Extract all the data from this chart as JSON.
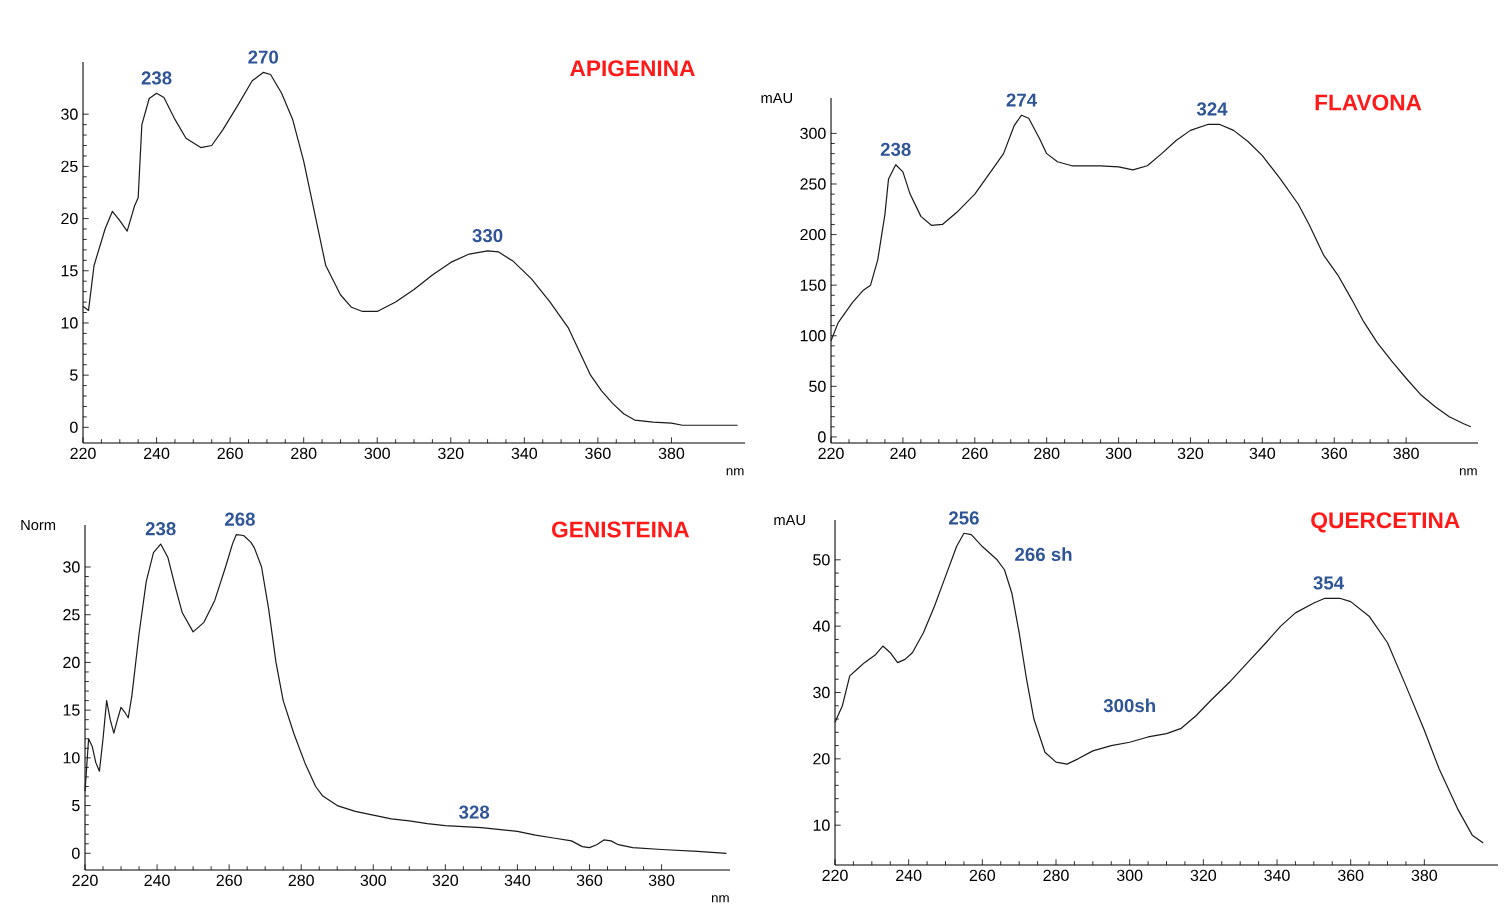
{
  "chart_data": [
    {
      "type": "line",
      "title": "APIGENINA",
      "xlabel": "nm",
      "x": [
        220,
        221.5,
        223,
        226,
        228,
        230,
        232,
        234,
        235,
        236,
        238,
        240,
        242,
        245,
        248,
        252,
        255,
        258,
        262,
        266,
        269,
        271,
        274,
        277,
        280,
        283,
        286,
        290,
        293,
        296,
        300,
        305,
        310,
        315,
        320,
        325,
        330,
        333,
        337,
        342,
        347,
        352,
        356,
        358,
        361,
        364,
        367,
        370,
        375,
        380,
        383,
        390,
        398
      ],
      "series": [
        {
          "color": "#1a1a1a",
          "values": [
            11.6,
            11.2,
            15.5,
            19,
            20.7,
            19.8,
            18.8,
            21.2,
            22,
            29,
            31.5,
            32,
            31.6,
            29.5,
            27.7,
            26.8,
            27,
            28.5,
            30.8,
            33.2,
            34,
            33.8,
            32,
            29.5,
            25.5,
            20.5,
            15.5,
            12.7,
            11.5,
            11.1,
            11.1,
            12,
            13.2,
            14.6,
            15.8,
            16.6,
            16.9,
            16.8,
            15.9,
            14.2,
            12,
            9.5,
            6.5,
            5,
            3.5,
            2.3,
            1.3,
            0.7,
            0.5,
            0.4,
            0.2,
            0.2,
            0.2
          ]
        }
      ],
      "xlim": [
        220,
        400
      ],
      "ylim": [
        -1.5,
        35
      ],
      "xticks": [
        220,
        240,
        260,
        280,
        300,
        320,
        340,
        360,
        380
      ],
      "yticks": [
        0,
        5,
        10,
        15,
        20,
        25,
        30
      ],
      "annotations": [
        {
          "text": "238",
          "x": 240,
          "y": 32
        },
        {
          "text": "270",
          "x": 269,
          "y": 34
        },
        {
          "text": "330",
          "x": 330,
          "y": 16.9
        }
      ]
    },
    {
      "type": "line",
      "title": "FLAVONA",
      "ylabel": "mAU",
      "xlabel": "nm",
      "x": [
        220,
        222,
        226,
        229,
        231,
        233,
        235,
        236,
        238,
        240,
        242,
        245,
        248,
        251,
        255,
        260,
        265,
        268,
        271,
        273,
        275,
        278,
        280,
        283,
        287,
        295,
        300,
        304,
        308,
        312,
        316,
        320,
        325,
        328,
        332,
        336,
        340,
        345,
        350,
        353,
        357,
        361,
        365,
        368,
        372,
        376,
        380,
        384,
        388,
        392,
        396,
        398
      ],
      "series": [
        {
          "color": "#1a1a1a",
          "values": [
            95,
            113,
            133,
            145,
            150,
            175,
            220,
            255,
            269,
            262,
            240,
            218,
            209,
            210,
            222,
            240,
            265,
            280,
            308,
            318,
            315,
            295,
            280,
            272,
            268,
            268,
            267,
            264,
            268,
            280,
            293,
            303,
            309,
            309,
            303,
            292,
            278,
            255,
            230,
            210,
            180,
            160,
            135,
            115,
            93,
            75,
            58,
            42,
            30,
            20,
            13,
            10
          ]
        }
      ],
      "xlim": [
        220,
        400
      ],
      "ylim": [
        -6,
        335
      ],
      "xticks": [
        220,
        240,
        260,
        280,
        300,
        320,
        340,
        360,
        380
      ],
      "yticks": [
        0,
        50,
        100,
        150,
        200,
        250,
        300
      ],
      "annotations": [
        {
          "text": "238",
          "x": 238,
          "y": 269
        },
        {
          "text": "274",
          "x": 273,
          "y": 318
        },
        {
          "text": "324",
          "x": 326,
          "y": 309
        }
      ]
    },
    {
      "type": "line",
      "title": "GENISTEINA",
      "ylabel": "Norm",
      "xlabel": "nm",
      "x": [
        220,
        221,
        222,
        223,
        224,
        225,
        226,
        227,
        228,
        229,
        230,
        231,
        232,
        233,
        235,
        237,
        239,
        241,
        243,
        245,
        247,
        250,
        253,
        256,
        259,
        261,
        262,
        264,
        266,
        267,
        269,
        271,
        273,
        275,
        278,
        281,
        284,
        286,
        290,
        295,
        300,
        305,
        310,
        315,
        320,
        330,
        340,
        345,
        350,
        355,
        358,
        360,
        362,
        364,
        366,
        368,
        372,
        380,
        390,
        398
      ],
      "series": [
        {
          "color": "#1a1a1a",
          "values": [
            6.5,
            12,
            11.2,
            9.5,
            8.6,
            12,
            16,
            14,
            12.6,
            14,
            15.3,
            14.8,
            14.2,
            16.5,
            23,
            28.5,
            31.5,
            32.4,
            31,
            28,
            25.2,
            23.2,
            24.2,
            26.5,
            30,
            32.5,
            33.4,
            33.3,
            32.6,
            32,
            30,
            25.5,
            20,
            16,
            12.5,
            9.5,
            7,
            6,
            5,
            4.4,
            4,
            3.6,
            3.4,
            3.1,
            2.9,
            2.7,
            2.3,
            1.9,
            1.6,
            1.3,
            0.7,
            0.6,
            0.9,
            1.4,
            1.3,
            0.9,
            0.6,
            0.4,
            0.2,
            0
          ]
        }
      ],
      "xlim": [
        220,
        399
      ],
      "ylim": [
        -1.75,
        34.4
      ],
      "xticks": [
        220,
        240,
        260,
        280,
        300,
        320,
        340,
        360,
        380
      ],
      "yticks": [
        0,
        5,
        10,
        15,
        20,
        25,
        30
      ],
      "annotations": [
        {
          "text": "238",
          "x": 241,
          "y": 32.4
        },
        {
          "text": "268",
          "x": 263,
          "y": 33.4
        },
        {
          "text": "328",
          "x": 328,
          "y": 2.7
        }
      ]
    },
    {
      "type": "line",
      "title": "QUERCETINA",
      "ylabel": "mAU",
      "x": [
        220,
        222,
        224,
        226,
        228,
        231,
        233,
        235,
        237,
        239,
        241,
        244,
        247,
        250,
        253,
        255,
        257,
        260,
        264,
        266,
        268,
        270,
        272,
        274,
        277,
        280,
        283,
        286,
        290,
        295,
        300,
        305,
        310,
        314,
        318,
        322,
        327,
        332,
        337,
        341,
        345,
        350,
        353,
        357,
        360,
        365,
        370,
        375,
        380,
        384,
        389,
        393,
        396
      ],
      "series": [
        {
          "color": "#1a1a1a",
          "values": [
            25.5,
            28,
            32.5,
            33.5,
            34.5,
            35.7,
            37,
            36,
            34.5,
            35,
            36,
            39,
            43,
            47.5,
            52,
            54,
            53.8,
            52,
            50,
            48.5,
            45,
            39,
            32,
            26,
            21,
            19.5,
            19.2,
            20,
            21.2,
            22,
            22.5,
            23.3,
            23.8,
            24.6,
            26.5,
            28.8,
            31.5,
            34.5,
            37.5,
            40,
            42,
            43.5,
            44.2,
            44.2,
            43.7,
            41.5,
            37.5,
            31,
            24.3,
            18.5,
            12.5,
            8.5,
            7.3
          ]
        }
      ],
      "xlim": [
        220,
        400
      ],
      "ylim": [
        4,
        56
      ],
      "xticks": [
        220,
        240,
        260,
        280,
        300,
        320,
        340,
        360,
        380
      ],
      "yticks": [
        10,
        20,
        30,
        40,
        50
      ],
      "annotations": [
        {
          "text": "256",
          "x": 255,
          "y": 54
        },
        {
          "text": "266 sh",
          "x": 266,
          "y": 48.5
        },
        {
          "text": "300sh",
          "x": 300,
          "y": 22.5
        },
        {
          "text": "354",
          "x": 354,
          "y": 44.2
        }
      ]
    }
  ]
}
